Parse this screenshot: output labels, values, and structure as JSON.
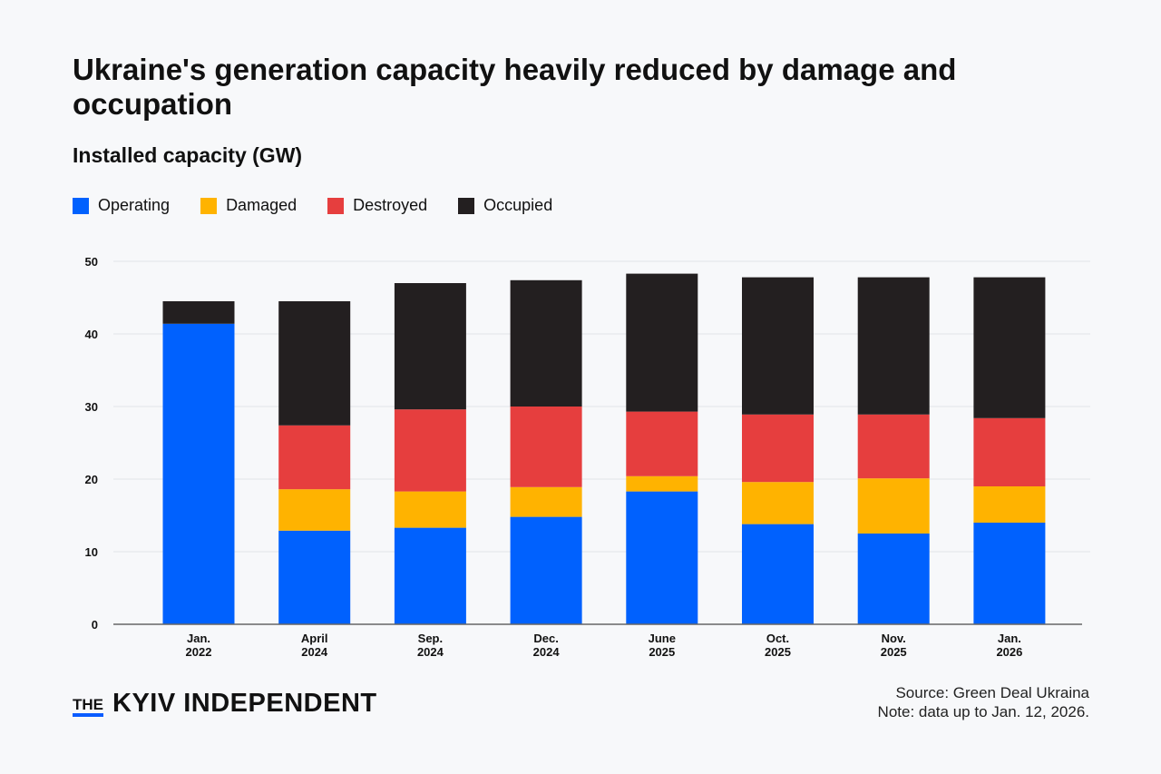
{
  "chart_data": {
    "type": "bar",
    "stacked": true,
    "title": "Ukraine's generation capacity heavily reduced by damage and occupation",
    "subtitle": "Installed capacity (GW)",
    "categories": [
      [
        "Jan.",
        "2022"
      ],
      [
        "April",
        "2024"
      ],
      [
        "Sep.",
        "2024"
      ],
      [
        "Dec.",
        "2024"
      ],
      [
        "June",
        "2025"
      ],
      [
        "Oct.",
        "2025"
      ],
      [
        "Nov.",
        "2025"
      ],
      [
        "Jan.",
        "2026"
      ]
    ],
    "series": [
      {
        "name": "Operating",
        "color": "#0061fe",
        "values": [
          41.4,
          12.9,
          13.3,
          14.8,
          18.3,
          13.8,
          12.5,
          14.0
        ]
      },
      {
        "name": "Damaged",
        "color": "#ffb300",
        "values": [
          0,
          5.7,
          5.0,
          4.1,
          2.1,
          5.8,
          7.6,
          5.0
        ]
      },
      {
        "name": "Destroyed",
        "color": "#e63e3e",
        "values": [
          0,
          8.8,
          11.3,
          11.1,
          8.9,
          9.3,
          8.8,
          9.4
        ]
      },
      {
        "name": "Occupied",
        "color": "#231f20",
        "values": [
          3.1,
          17.1,
          17.4,
          17.4,
          19.0,
          18.9,
          18.9,
          19.4
        ]
      }
    ],
    "ylim": [
      0,
      50
    ],
    "yticks": [
      0,
      10,
      20,
      30,
      40,
      50
    ],
    "grid": true,
    "legend": "top-left"
  },
  "footer": {
    "logo_the": "THE",
    "logo_name": "KYIV INDEPENDENT",
    "source": "Source: Green Deal Ukraina",
    "note": "Note: data up to Jan. 12, 2026."
  },
  "colors": {
    "accent": "#0a5cff",
    "background": "#f7f8fa"
  }
}
